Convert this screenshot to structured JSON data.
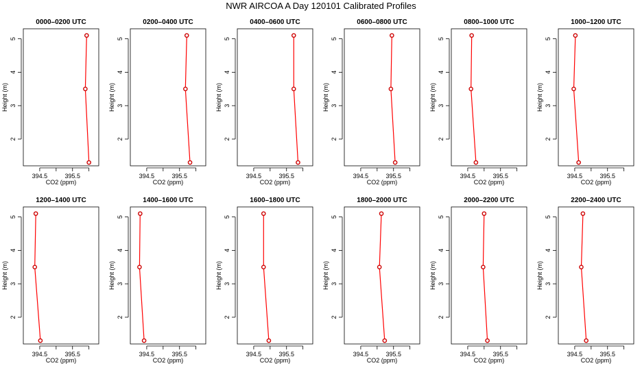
{
  "title": "NWR AIRCOA A  Day 120101  Calibrated Profiles",
  "colors": {
    "line": "#ff0000",
    "marker": "#cc0000",
    "frame": "#000000",
    "background": "#ffffff"
  },
  "chart_data": {
    "type": "line",
    "orientation": "horizontal-profile",
    "xlabel": "CO2 (ppm)",
    "ylabel": "Height (m)",
    "xlim": [
      394.0,
      396.3
    ],
    "ylim": [
      1.2,
      5.3
    ],
    "xticks": [
      394.5,
      395,
      395.5,
      396
    ],
    "xtick_labels": [
      "394.5",
      "",
      "395.5",
      ""
    ],
    "yticks": [
      2,
      3,
      4,
      5
    ],
    "ytick_labels": [
      "2",
      "3",
      "4",
      "5"
    ],
    "grid": false,
    "legend": "none",
    "panels": [
      {
        "title": "0000–0200 UTC",
        "points": [
          {
            "co2": 395.93,
            "height": 5.1
          },
          {
            "co2": 395.89,
            "height": 3.5
          },
          {
            "co2": 396.0,
            "height": 1.3
          }
        ]
      },
      {
        "title": "0200–0400 UTC",
        "points": [
          {
            "co2": 395.72,
            "height": 5.1
          },
          {
            "co2": 395.68,
            "height": 3.5
          },
          {
            "co2": 395.82,
            "height": 1.3
          }
        ]
      },
      {
        "title": "0400–0600 UTC",
        "points": [
          {
            "co2": 395.72,
            "height": 5.1
          },
          {
            "co2": 395.72,
            "height": 3.5
          },
          {
            "co2": 395.85,
            "height": 1.3
          }
        ]
      },
      {
        "title": "0600–0800 UTC",
        "points": [
          {
            "co2": 395.45,
            "height": 5.1
          },
          {
            "co2": 395.42,
            "height": 3.5
          },
          {
            "co2": 395.55,
            "height": 1.3
          }
        ]
      },
      {
        "title": "0800–1000 UTC",
        "points": [
          {
            "co2": 394.62,
            "height": 5.1
          },
          {
            "co2": 394.6,
            "height": 3.5
          },
          {
            "co2": 394.75,
            "height": 1.3
          }
        ]
      },
      {
        "title": "1000–1200 UTC",
        "points": [
          {
            "co2": 394.52,
            "height": 5.1
          },
          {
            "co2": 394.47,
            "height": 3.5
          },
          {
            "co2": 394.62,
            "height": 1.3
          }
        ]
      },
      {
        "title": "1200–1400 UTC",
        "points": [
          {
            "co2": 394.38,
            "height": 5.1
          },
          {
            "co2": 394.35,
            "height": 3.5
          },
          {
            "co2": 394.52,
            "height": 1.3
          }
        ]
      },
      {
        "title": "1400–1600 UTC",
        "points": [
          {
            "co2": 394.3,
            "height": 5.1
          },
          {
            "co2": 394.28,
            "height": 3.5
          },
          {
            "co2": 394.42,
            "height": 1.3
          }
        ]
      },
      {
        "title": "1600–1800 UTC",
        "points": [
          {
            "co2": 394.8,
            "height": 5.1
          },
          {
            "co2": 394.8,
            "height": 3.5
          },
          {
            "co2": 394.96,
            "height": 1.3
          }
        ]
      },
      {
        "title": "1800–2000 UTC",
        "points": [
          {
            "co2": 395.13,
            "height": 5.1
          },
          {
            "co2": 395.07,
            "height": 3.5
          },
          {
            "co2": 395.23,
            "height": 1.3
          }
        ]
      },
      {
        "title": "2000–2200 UTC",
        "points": [
          {
            "co2": 395.0,
            "height": 5.1
          },
          {
            "co2": 394.97,
            "height": 3.5
          },
          {
            "co2": 395.1,
            "height": 1.3
          }
        ]
      },
      {
        "title": "2200–2400 UTC",
        "points": [
          {
            "co2": 394.75,
            "height": 5.1
          },
          {
            "co2": 394.7,
            "height": 3.5
          },
          {
            "co2": 394.85,
            "height": 1.3
          }
        ]
      }
    ]
  }
}
